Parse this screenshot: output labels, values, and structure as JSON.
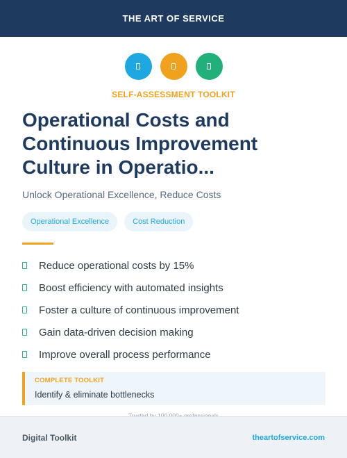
{
  "header": {
    "brand": "THE ART OF SERVICE"
  },
  "icons": [
    {
      "name": "document-icon",
      "color": "#1ea7e1"
    },
    {
      "name": "document-icon",
      "color": "#f0a21f"
    },
    {
      "name": "document-icon",
      "color": "#21b07a"
    }
  ],
  "kicker": "SELF-ASSESSMENT TOOLKIT",
  "title": "Operational Costs and Continuous Improvement Culture in Operatio...",
  "subtitle": "Unlock Operational Excellence, Reduce Costs",
  "tags": [
    "Operational Excellence",
    "Cost Reduction"
  ],
  "benefits": [
    "Reduce operational costs by 15%",
    "Boost efficiency with automated insights",
    "Foster a culture of continuous improvement",
    "Gain data-driven decision making",
    "Improve overall process performance"
  ],
  "callout": {
    "kicker": "COMPLETE TOOLKIT",
    "text": "Identify & eliminate bottlenecks"
  },
  "trusted": "Trusted by 100,000+ professionals",
  "footer": {
    "left": "Digital Toolkit",
    "right": "theartofservice.com"
  },
  "colors": {
    "navy": "#1e3a5f",
    "blue": "#1ea7e1",
    "orange": "#f0a21f",
    "green": "#21b07a"
  }
}
